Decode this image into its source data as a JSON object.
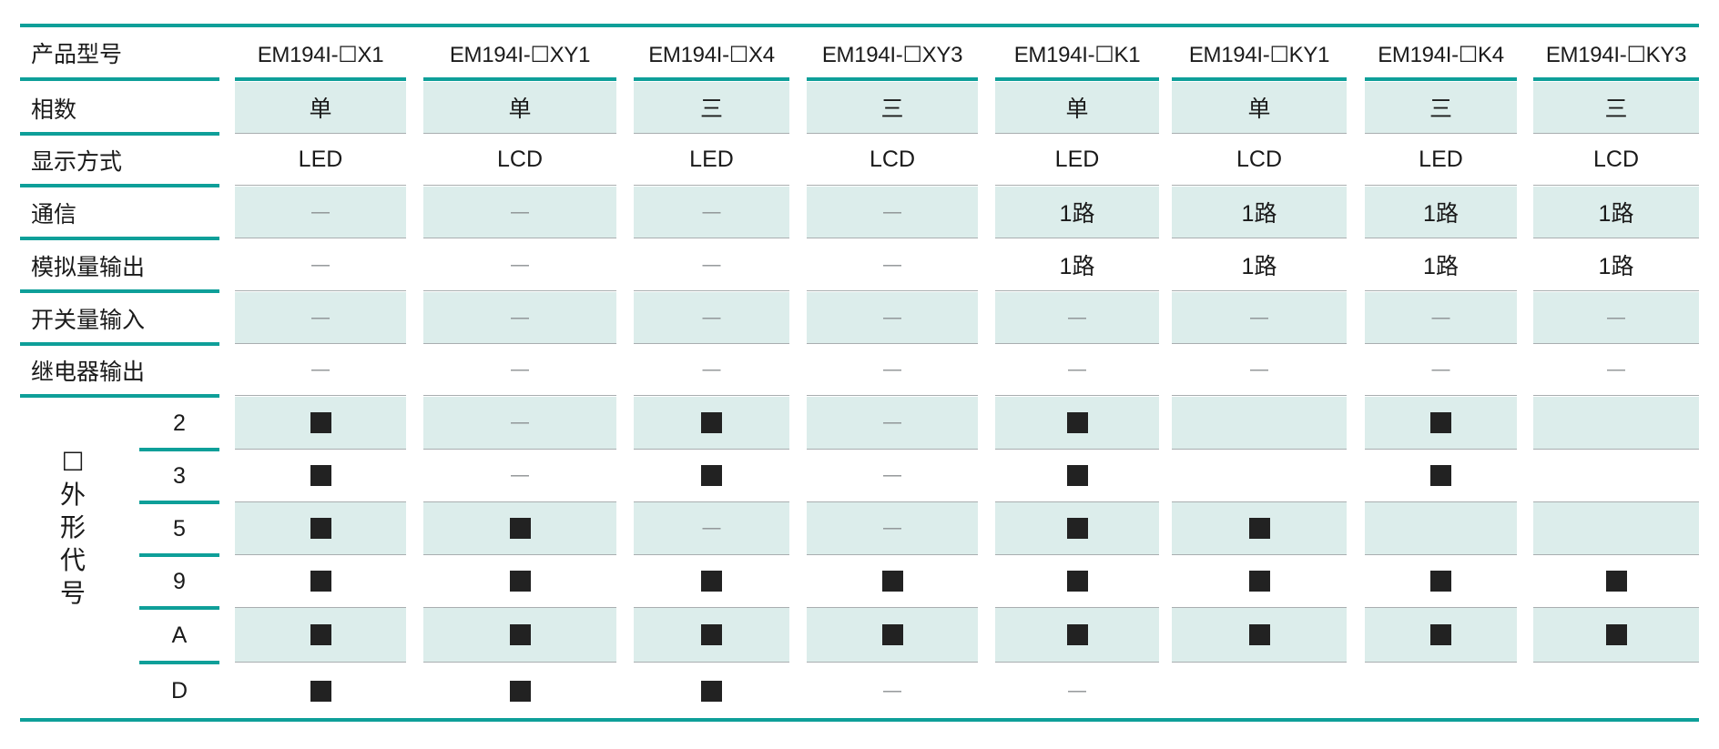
{
  "columns": [
    {
      "model": "EM194I-☐X1"
    },
    {
      "model": "EM194I-☐XY1"
    },
    {
      "model": "EM194I-☐X4"
    },
    {
      "model": "EM194I-☐XY3"
    },
    {
      "model": "EM194I-☐K1"
    },
    {
      "model": "EM194I-☐KY1"
    },
    {
      "model": "EM194I-☐K4"
    },
    {
      "model": "EM194I-☐KY3"
    }
  ],
  "header_label": "产品型号",
  "rows": [
    {
      "label": "相数",
      "values": [
        "单",
        "单",
        "三",
        "三",
        "单",
        "单",
        "三",
        "三"
      ]
    },
    {
      "label": "显示方式",
      "values": [
        "LED",
        "LCD",
        "LED",
        "LCD",
        "LED",
        "LCD",
        "LED",
        "LCD"
      ]
    },
    {
      "label": "通信",
      "values": [
        "—",
        "—",
        "—",
        "—",
        "1路",
        "1路",
        "1路",
        "1路"
      ]
    },
    {
      "label": "模拟量输出",
      "values": [
        "—",
        "—",
        "—",
        "—",
        "1路",
        "1路",
        "1路",
        "1路"
      ]
    },
    {
      "label": "开关量输入",
      "values": [
        "—",
        "—",
        "—",
        "—",
        "—",
        "—",
        "—",
        "—"
      ]
    },
    {
      "label": "继电器输出",
      "values": [
        "—",
        "—",
        "—",
        "—",
        "—",
        "—",
        "—",
        "—"
      ]
    }
  ],
  "shape_group": {
    "label_chars": [
      "☐",
      "外",
      "形",
      "代",
      "号"
    ],
    "rows": [
      {
        "code": "2",
        "values": [
          "■",
          "—",
          "■",
          "—",
          "■",
          "",
          "■",
          ""
        ]
      },
      {
        "code": "3",
        "values": [
          "■",
          "—",
          "■",
          "—",
          "■",
          "",
          "■",
          ""
        ]
      },
      {
        "code": "5",
        "values": [
          "■",
          "■",
          "—",
          "—",
          "■",
          "■",
          "",
          ""
        ]
      },
      {
        "code": "9",
        "values": [
          "■",
          "■",
          "■",
          "■",
          "■",
          "■",
          "■",
          "■"
        ]
      },
      {
        "code": "A",
        "values": [
          "■",
          "■",
          "■",
          "■",
          "■",
          "■",
          "■",
          "■"
        ]
      },
      {
        "code": "D",
        "values": [
          "■",
          "■",
          "■",
          "—",
          "—",
          "",
          "",
          ""
        ]
      }
    ]
  },
  "colors": {
    "accent": "#0e9f99",
    "shade": "#dcedeb",
    "mark": "#222222"
  }
}
